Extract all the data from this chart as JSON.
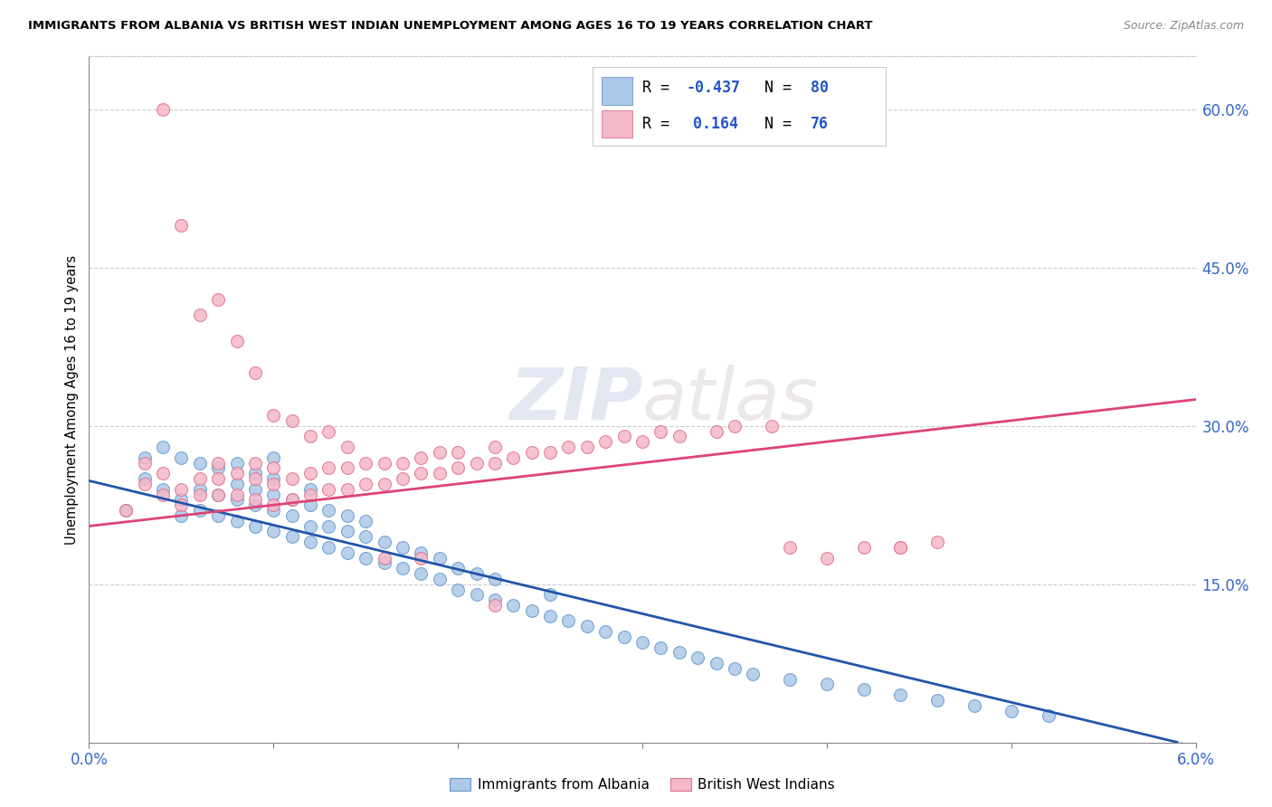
{
  "title": "IMMIGRANTS FROM ALBANIA VS BRITISH WEST INDIAN UNEMPLOYMENT AMONG AGES 16 TO 19 YEARS CORRELATION CHART",
  "source": "Source: ZipAtlas.com",
  "ylabel": "Unemployment Among Ages 16 to 19 years",
  "xlim": [
    0.0,
    0.06
  ],
  "ylim": [
    0.0,
    0.65
  ],
  "xticks": [
    0.0,
    0.01,
    0.02,
    0.03,
    0.04,
    0.05,
    0.06
  ],
  "xtick_labels": [
    "0.0%",
    "",
    "",
    "",
    "",
    "",
    "6.0%"
  ],
  "yticks_right": [
    0.15,
    0.3,
    0.45,
    0.6
  ],
  "ytick_right_labels": [
    "15.0%",
    "30.0%",
    "45.0%",
    "60.0%"
  ],
  "blue_color": "#adc8e8",
  "pink_color": "#f5b8c8",
  "blue_edge": "#6699cc",
  "pink_edge": "#e07090",
  "blue_line_color": "#2255aa",
  "pink_line_color": "#dd4477",
  "albania_x": [
    0.002,
    0.003,
    0.003,
    0.004,
    0.004,
    0.005,
    0.005,
    0.005,
    0.006,
    0.006,
    0.006,
    0.007,
    0.007,
    0.007,
    0.008,
    0.008,
    0.008,
    0.008,
    0.009,
    0.009,
    0.009,
    0.009,
    0.01,
    0.01,
    0.01,
    0.01,
    0.01,
    0.011,
    0.011,
    0.011,
    0.012,
    0.012,
    0.012,
    0.012,
    0.013,
    0.013,
    0.013,
    0.014,
    0.014,
    0.014,
    0.015,
    0.015,
    0.015,
    0.016,
    0.016,
    0.017,
    0.017,
    0.018,
    0.018,
    0.019,
    0.019,
    0.02,
    0.02,
    0.021,
    0.021,
    0.022,
    0.022,
    0.023,
    0.024,
    0.025,
    0.025,
    0.026,
    0.027,
    0.028,
    0.029,
    0.03,
    0.031,
    0.032,
    0.033,
    0.034,
    0.035,
    0.036,
    0.038,
    0.04,
    0.042,
    0.044,
    0.046,
    0.048,
    0.05,
    0.052
  ],
  "albania_y": [
    0.22,
    0.25,
    0.27,
    0.24,
    0.28,
    0.215,
    0.23,
    0.27,
    0.22,
    0.24,
    0.265,
    0.215,
    0.235,
    0.26,
    0.21,
    0.23,
    0.245,
    0.265,
    0.205,
    0.225,
    0.24,
    0.255,
    0.2,
    0.22,
    0.235,
    0.25,
    0.27,
    0.195,
    0.215,
    0.23,
    0.19,
    0.205,
    0.225,
    0.24,
    0.185,
    0.205,
    0.22,
    0.18,
    0.2,
    0.215,
    0.175,
    0.195,
    0.21,
    0.17,
    0.19,
    0.165,
    0.185,
    0.16,
    0.18,
    0.155,
    0.175,
    0.145,
    0.165,
    0.14,
    0.16,
    0.135,
    0.155,
    0.13,
    0.125,
    0.12,
    0.14,
    0.115,
    0.11,
    0.105,
    0.1,
    0.095,
    0.09,
    0.085,
    0.08,
    0.075,
    0.07,
    0.065,
    0.06,
    0.055,
    0.05,
    0.045,
    0.04,
    0.035,
    0.03,
    0.025
  ],
  "bwi_x": [
    0.002,
    0.003,
    0.003,
    0.004,
    0.004,
    0.005,
    0.005,
    0.006,
    0.006,
    0.007,
    0.007,
    0.007,
    0.008,
    0.008,
    0.009,
    0.009,
    0.009,
    0.01,
    0.01,
    0.01,
    0.011,
    0.011,
    0.012,
    0.012,
    0.013,
    0.013,
    0.014,
    0.014,
    0.015,
    0.015,
    0.016,
    0.016,
    0.017,
    0.017,
    0.018,
    0.018,
    0.019,
    0.019,
    0.02,
    0.02,
    0.021,
    0.022,
    0.022,
    0.023,
    0.024,
    0.025,
    0.026,
    0.027,
    0.028,
    0.029,
    0.03,
    0.031,
    0.032,
    0.034,
    0.035,
    0.037,
    0.04,
    0.042,
    0.044,
    0.046,
    0.004,
    0.005,
    0.006,
    0.007,
    0.008,
    0.009,
    0.01,
    0.011,
    0.012,
    0.013,
    0.014,
    0.016,
    0.018,
    0.022,
    0.038,
    0.044
  ],
  "bwi_y": [
    0.22,
    0.245,
    0.265,
    0.235,
    0.255,
    0.225,
    0.24,
    0.235,
    0.25,
    0.235,
    0.25,
    0.265,
    0.235,
    0.255,
    0.23,
    0.25,
    0.265,
    0.225,
    0.245,
    0.26,
    0.23,
    0.25,
    0.235,
    0.255,
    0.24,
    0.26,
    0.24,
    0.26,
    0.245,
    0.265,
    0.245,
    0.265,
    0.25,
    0.265,
    0.255,
    0.27,
    0.255,
    0.275,
    0.26,
    0.275,
    0.265,
    0.265,
    0.28,
    0.27,
    0.275,
    0.275,
    0.28,
    0.28,
    0.285,
    0.29,
    0.285,
    0.295,
    0.29,
    0.295,
    0.3,
    0.3,
    0.175,
    0.185,
    0.185,
    0.19,
    0.6,
    0.49,
    0.405,
    0.42,
    0.38,
    0.35,
    0.31,
    0.305,
    0.29,
    0.295,
    0.28,
    0.175,
    0.175,
    0.13,
    0.185,
    0.185
  ]
}
